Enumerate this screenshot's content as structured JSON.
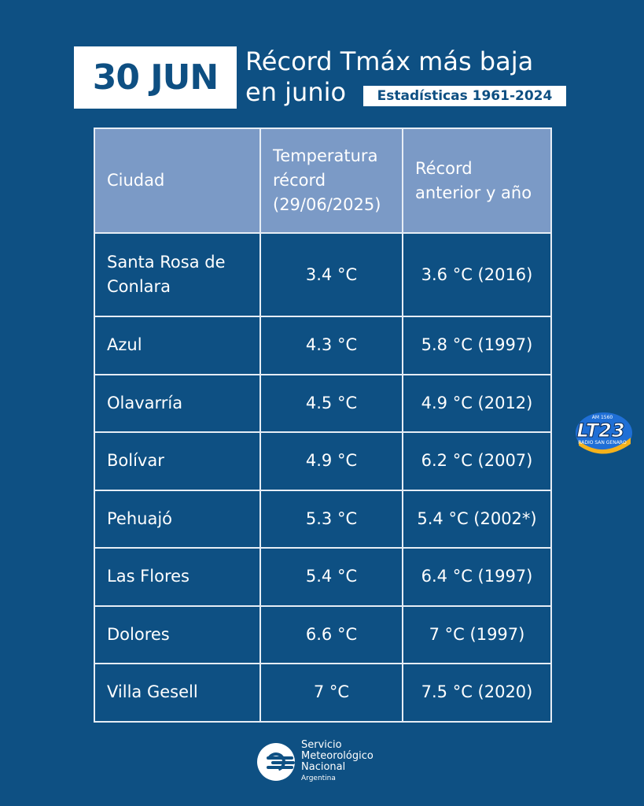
{
  "header": {
    "date": "30 JUN",
    "title_line1": "Récord Tmáx más baja",
    "title_line2": "en junio",
    "badge": "Estadísticas 1961-2024"
  },
  "table": {
    "headers": [
      "Ciudad",
      "Temperatura récord (29/06/2025)",
      "Récord anterior y año"
    ],
    "rows": [
      {
        "city": "Santa Rosa de Conlara",
        "record": "3.4 °C",
        "previous": "3.6 °C (2016)"
      },
      {
        "city": "Azul",
        "record": "4.3 °C",
        "previous": "5.8 °C (1997)"
      },
      {
        "city": "Olavarría",
        "record": "4.5 °C",
        "previous": "4.9 °C (2012)"
      },
      {
        "city": "Bolívar",
        "record": "4.9 °C",
        "previous": "6.2 °C (2007)"
      },
      {
        "city": "Pehuajó",
        "record": "5.3 °C",
        "previous": "5.4 °C (2002*)"
      },
      {
        "city": "Las Flores",
        "record": "5.4 °C",
        "previous": "6.4 °C (1997)"
      },
      {
        "city": "Dolores",
        "record": "6.6 °C",
        "previous": "7 °C (1997)"
      },
      {
        "city": "Villa Gesell",
        "record": "7 °C",
        "previous": "7.5 °C (2020)"
      }
    ]
  },
  "watermark": {
    "name": "LT23",
    "freq": "AM 1560",
    "tagline": "RADIO SAN GENARO"
  },
  "footer": {
    "org_line1": "Servicio",
    "org_line2": "Meteorológico",
    "org_line3": "Nacional",
    "country": "Argentina"
  },
  "colors": {
    "background": "#0e5083",
    "header_row": "#7b9ac6",
    "grid": "#e6edf5"
  }
}
